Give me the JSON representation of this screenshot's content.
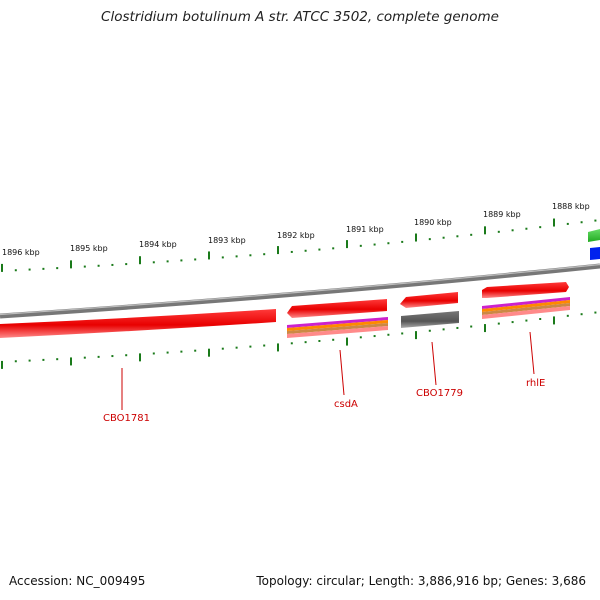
{
  "title": "Clostridium botulinum A str. ATCC 3502, complete genome",
  "accession_text": "Accession: NC_009495",
  "summary_text": "Topology: circular; Length: 3,886,916 bp; Genes: 3,686",
  "scale_labels": [
    "1896 kbp",
    "1895 kbp",
    "1894 kbp",
    "1893 kbp",
    "1892 kbp",
    "1891 kbp",
    "1890 kbp",
    "1889 kbp",
    "1888 kbp"
  ],
  "gene_labels": [
    "CBO1781",
    "csdA",
    "CBO1779",
    "rhlE"
  ],
  "colors": {
    "gene_red": "#ee0000",
    "tick_green": "#1a7a1a",
    "backbone": "#8a8a8a",
    "label_red": "#cc0000",
    "cog_green": "#33bb33",
    "cog_blue": "#0022ee",
    "cog_grey": "#555555"
  }
}
